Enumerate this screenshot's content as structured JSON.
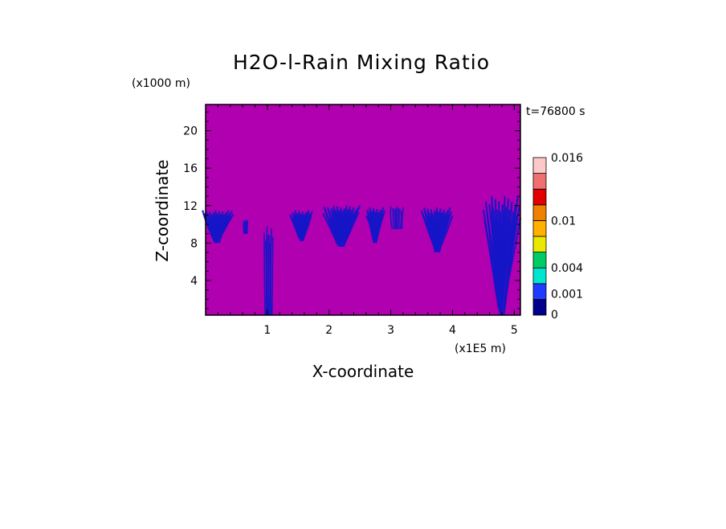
{
  "chart_data": {
    "type": "heatmap",
    "title": "H2O-l-Rain Mixing Ratio",
    "xlabel": "X-coordinate",
    "ylabel": "Z-coordinate",
    "x_unit": "(x1E5 m)",
    "y_unit": "(x1000 m)",
    "time_label": "t=76800 s",
    "xlim": [
      0,
      5.1
    ],
    "ylim": [
      0.3,
      22.8
    ],
    "x_ticks": [
      1,
      2,
      3,
      4,
      5
    ],
    "y_ticks": [
      4,
      8,
      12,
      16,
      20
    ],
    "background_color": "#b000b0",
    "rain_color": "#1515c8",
    "colorbar": {
      "levels": [
        0,
        0.001,
        0.002,
        0.004,
        0.006,
        0.008,
        0.01,
        0.012,
        0.014,
        0.016
      ],
      "colors": [
        "#00008b",
        "#1e3cff",
        "#00e5d0",
        "#00cc66",
        "#e8e800",
        "#ffb000",
        "#f08000",
        "#e00000",
        "#f07070",
        "#ffc8c8"
      ],
      "labels": [
        {
          "value": 0,
          "text": "0"
        },
        {
          "value": 0.001,
          "text": "0.001"
        },
        {
          "value": 0.004,
          "text": "0.004"
        },
        {
          "value": 0.01,
          "text": "0.01"
        },
        {
          "value": 0.016,
          "text": "0.016"
        }
      ]
    },
    "rain_cells": [
      {
        "x": 0.2,
        "z_top": 11.5,
        "z_bottom": 8.0,
        "half_width": 0.25
      },
      {
        "x": 0.65,
        "z_top": 10.5,
        "z_bottom": 9.0,
        "half_width": 0.03
      },
      {
        "x": 1.02,
        "z_top": 10.0,
        "z_bottom": 0.3,
        "half_width": 0.07
      },
      {
        "x": 1.55,
        "z_top": 11.5,
        "z_bottom": 8.2,
        "half_width": 0.18
      },
      {
        "x": 2.2,
        "z_top": 12.0,
        "z_bottom": 7.6,
        "half_width": 0.3
      },
      {
        "x": 2.75,
        "z_top": 11.8,
        "z_bottom": 8.0,
        "half_width": 0.15
      },
      {
        "x": 3.1,
        "z_top": 12.0,
        "z_bottom": 9.5,
        "half_width": 0.1
      },
      {
        "x": 3.75,
        "z_top": 11.8,
        "z_bottom": 7.0,
        "half_width": 0.25
      },
      {
        "x": 4.8,
        "z_top": 13.0,
        "z_bottom": 0.3,
        "half_width": 0.3
      }
    ]
  }
}
